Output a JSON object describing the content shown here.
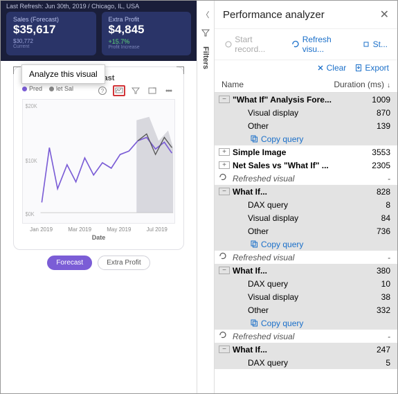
{
  "topbar": {
    "refresh": "Last Refresh: Jun 30th, 2019 / Chicago, IL, USA"
  },
  "kpis": [
    {
      "title": "Sales (Forecast)",
      "value": "$35,617",
      "sub1": "$30,772",
      "sub2": "Current"
    },
    {
      "title": "Extra Profit",
      "value": "$4,845",
      "pct": "+15.7%",
      "sub2": "Profit Increase"
    }
  ],
  "tooltip": "Analyze this visual",
  "card": {
    "title": "What If Analys... Forecast",
    "legend": [
      {
        "label": "Pred",
        "color": "#7b5dd6"
      },
      {
        "label": "let Sal",
        "color": "#888888"
      }
    ],
    "ylabels": [
      "$20K",
      "$10K",
      "$0K"
    ],
    "xlabels": [
      "Jan 2019",
      "Mar 2019",
      "May 2019",
      "Jul 2019"
    ],
    "axis": "Date",
    "line_color": "#7b5dd6",
    "band_color": "#bcbcc4"
  },
  "buttons": {
    "forecast": "Forecast",
    "extra": "Extra Profit"
  },
  "filters_label": "Filters",
  "panel": {
    "title": "Performance analyzer",
    "toolbar": {
      "start": "Start record...",
      "refresh": "Refresh visu...",
      "stop": "St..."
    },
    "actions": {
      "clear": "Clear",
      "export": "Export"
    },
    "columns": {
      "name": "Name",
      "dur": "Duration (ms)"
    },
    "rows": [
      {
        "type": "parent",
        "toggle": "-",
        "label": "\"What If\" Analysis Fore...",
        "value": "1009",
        "shade": true
      },
      {
        "type": "child",
        "label": "Visual display",
        "value": "870",
        "shade": true
      },
      {
        "type": "child",
        "label": "Other",
        "value": "139",
        "shade": true
      },
      {
        "type": "copy",
        "label": "Copy query",
        "shade": true
      },
      {
        "type": "parent",
        "toggle": "+",
        "label": "Simple Image",
        "value": "3553"
      },
      {
        "type": "parent",
        "toggle": "+",
        "label": "Net Sales vs \"What If\" ...",
        "value": "2305"
      },
      {
        "type": "refresh",
        "label": "Refreshed visual",
        "value": "-"
      },
      {
        "type": "parent",
        "toggle": "-",
        "label": "What If...",
        "value": "828",
        "shade": true
      },
      {
        "type": "child",
        "label": "DAX query",
        "value": "8",
        "shade": true
      },
      {
        "type": "child",
        "label": "Visual display",
        "value": "84",
        "shade": true
      },
      {
        "type": "child",
        "label": "Other",
        "value": "736",
        "shade": true
      },
      {
        "type": "copy",
        "label": "Copy query",
        "shade": true
      },
      {
        "type": "refresh",
        "label": "Refreshed visual",
        "value": "-"
      },
      {
        "type": "parent",
        "toggle": "-",
        "label": "What If...",
        "value": "380",
        "shade": true
      },
      {
        "type": "child",
        "label": "DAX query",
        "value": "10",
        "shade": true
      },
      {
        "type": "child",
        "label": "Visual display",
        "value": "38",
        "shade": true
      },
      {
        "type": "child",
        "label": "Other",
        "value": "332",
        "shade": true
      },
      {
        "type": "copy",
        "label": "Copy query",
        "shade": true
      },
      {
        "type": "refresh",
        "label": "Refreshed visual",
        "value": "-"
      },
      {
        "type": "parent",
        "toggle": "-",
        "label": "What If...",
        "value": "247",
        "shade": true
      },
      {
        "type": "child",
        "label": "DAX query",
        "value": "5",
        "shade": true
      }
    ]
  }
}
